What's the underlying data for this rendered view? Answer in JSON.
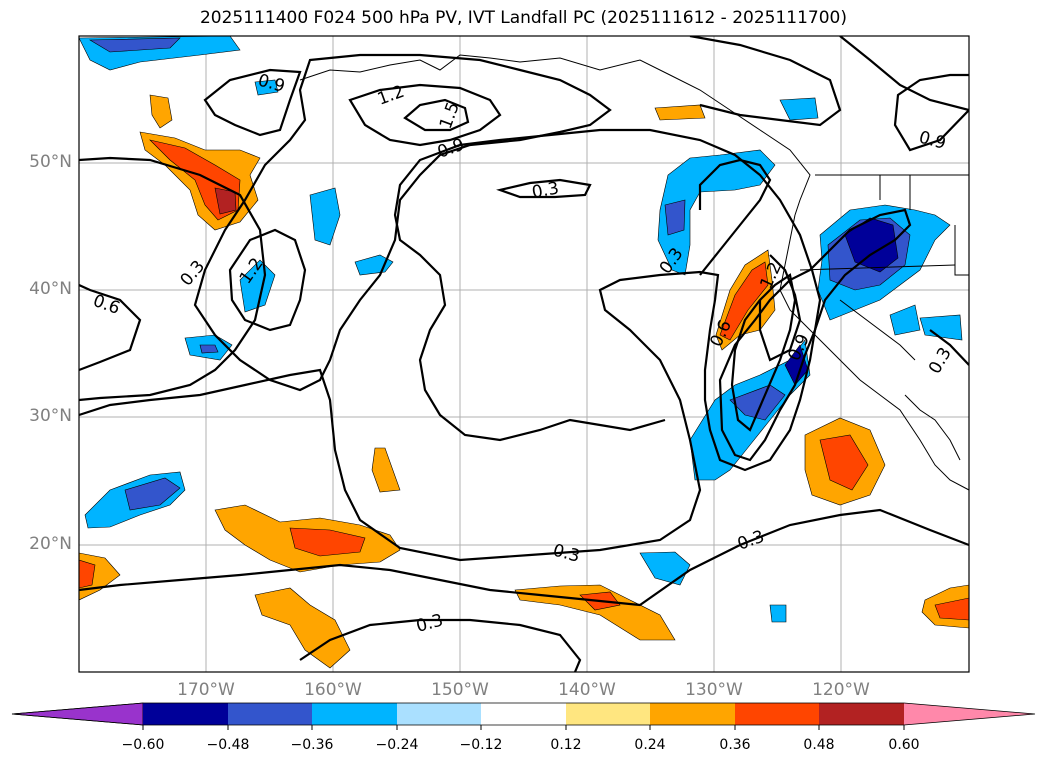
{
  "title": "2025111400 F024 500 hPa PV, IVT Landfall PC (2025111612 - 2025111700)",
  "lat_labels": [
    "50°N",
    "40°N",
    "30°N",
    "20°N"
  ],
  "lon_labels": [
    "170°W",
    "160°W",
    "150°W",
    "140°W",
    "130°W",
    "120°W"
  ],
  "contour_labels": [
    "0.9",
    "1.2",
    "1.5",
    "0.9",
    "0.3",
    "0.3",
    "1.2",
    "0.6",
    "0.3",
    "0.6",
    "1.2",
    "0.9",
    "0.9",
    "0.3",
    "0.3",
    "0.3",
    "0.3"
  ],
  "colorbar": {
    "ticks": [
      "−0.60",
      "−0.48",
      "−0.36",
      "−0.24",
      "−0.12",
      "0.12",
      "0.24",
      "0.36",
      "0.48",
      "0.60"
    ],
    "colors": [
      "#9933cc",
      "#000099",
      "#3355cc",
      "#00b4ff",
      "#aae0ff",
      "#ffffff",
      "#ffe680",
      "#ffa500",
      "#ff4500",
      "#b22222",
      "#ff88aa"
    ]
  },
  "colors": {
    "strong_negative": "#000099",
    "negative": "#3355cc",
    "moderate_negative": "#00b4ff",
    "positive": "#ffa500",
    "strong_positive": "#ff4500",
    "very_strong_positive": "#b22222"
  }
}
